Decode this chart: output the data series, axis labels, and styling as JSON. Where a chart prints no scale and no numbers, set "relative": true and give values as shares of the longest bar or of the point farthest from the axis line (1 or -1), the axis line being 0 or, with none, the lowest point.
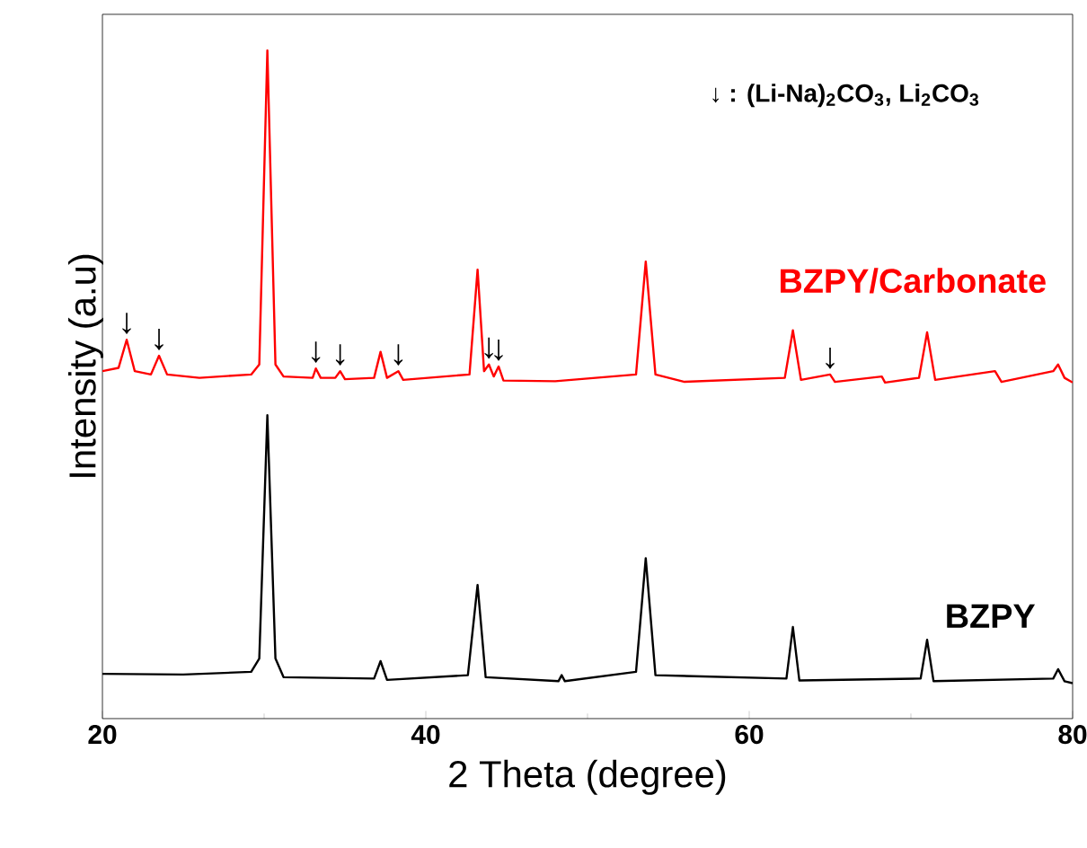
{
  "chart_data": {
    "type": "line",
    "xlabel": "2 Theta (degree)",
    "ylabel": "Intensity (a.u)",
    "relative": true,
    "xlim": [
      20,
      80
    ],
    "xticks": [
      20,
      40,
      60,
      80
    ],
    "legend": false,
    "marker": "none",
    "line_style": "solid",
    "series": [
      {
        "name": "BZPY/Carbonate",
        "color": "#ff0000",
        "x": [
          20,
          21.0,
          21.5,
          22.0,
          23.0,
          23.5,
          24.0,
          26,
          29.2,
          29.7,
          30.2,
          30.7,
          31.2,
          33.0,
          33.2,
          33.5,
          34.4,
          34.7,
          35,
          36.8,
          37.2,
          37.6,
          38.3,
          38.6,
          42.7,
          43.2,
          43.6,
          43.9,
          44.2,
          44.5,
          44.8,
          48,
          53.0,
          53.6,
          54.2,
          56,
          62.2,
          62.7,
          63.2,
          65.0,
          65.3,
          68.2,
          68.4,
          70.5,
          71.0,
          71.5,
          75.2,
          75.6,
          78.8,
          79.1,
          79.5,
          80
        ],
        "values": [
          0.52,
          0.525,
          0.567,
          0.52,
          0.515,
          0.543,
          0.515,
          0.51,
          0.515,
          0.53,
          1.0,
          0.53,
          0.512,
          0.51,
          0.524,
          0.51,
          0.51,
          0.52,
          0.508,
          0.51,
          0.549,
          0.51,
          0.52,
          0.507,
          0.515,
          0.672,
          0.52,
          0.53,
          0.512,
          0.527,
          0.506,
          0.505,
          0.515,
          0.684,
          0.515,
          0.504,
          0.51,
          0.581,
          0.507,
          0.515,
          0.504,
          0.512,
          0.503,
          0.51,
          0.578,
          0.507,
          0.52,
          0.504,
          0.52,
          0.53,
          0.51,
          0.503
        ]
      },
      {
        "name": "BZPY",
        "color": "#000000",
        "x": [
          20,
          25,
          29.2,
          29.7,
          30.2,
          30.7,
          31.2,
          36.8,
          37.2,
          37.6,
          42.6,
          43.2,
          43.7,
          48.2,
          48.4,
          48.6,
          53.0,
          53.6,
          54.2,
          62.3,
          62.7,
          63.1,
          70.6,
          71.0,
          71.4,
          78.8,
          79.1,
          79.5,
          80
        ],
        "values": [
          0.067,
          0.066,
          0.07,
          0.09,
          0.454,
          0.09,
          0.062,
          0.06,
          0.086,
          0.058,
          0.065,
          0.2,
          0.062,
          0.056,
          0.065,
          0.056,
          0.07,
          0.24,
          0.065,
          0.06,
          0.137,
          0.057,
          0.06,
          0.118,
          0.056,
          0.06,
          0.074,
          0.056,
          0.053
        ]
      }
    ],
    "annotations": [
      "↓ : (Li-Na)$_{2}$CO$_{3}$,  Li$_{2}$CO$_{3}$",
      {
        "text": "↓",
        "x": 21.5,
        "y": 0.567
      },
      {
        "text": "↓",
        "x": 23.5,
        "y": 0.543
      },
      {
        "text": "↓",
        "x": 33.2,
        "y": 0.524
      },
      {
        "text": "↓",
        "x": 34.7,
        "y": 0.52
      },
      {
        "text": "↓",
        "x": 38.3,
        "y": 0.52
      },
      {
        "text": "↓",
        "x": 43.9,
        "y": 0.53
      },
      {
        "text": "↓",
        "x": 44.5,
        "y": 0.527
      },
      {
        "text": "↓",
        "x": 65.0,
        "y": 0.515
      }
    ]
  }
}
